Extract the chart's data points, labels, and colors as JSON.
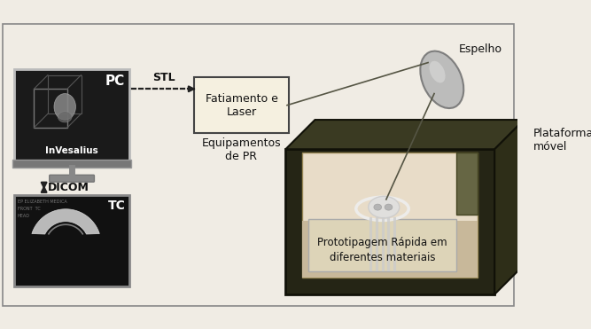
{
  "fig_width": 6.67,
  "fig_height": 3.71,
  "dpi": 100,
  "bg_color": "#f0ece4",
  "labels": {
    "PC": "PC",
    "InVesalius": "InVesalius",
    "STL": "STL",
    "DICOM": "DICOM",
    "TC": "TC",
    "fatiamento": "Fatiamento e\nLaser",
    "equipamentos": "Equipamentos\nde PR",
    "espelho": "Espelho",
    "plataforma": "Plataforma\nmóvel",
    "prototipagem": "Prototipagem Rápida em\ndiferentes materiais"
  },
  "colors": {
    "border_color": "#888888",
    "monitor_screen_bg": "#1a1a1a",
    "monitor_body": "#555555",
    "box_fill": "#f5f0e0",
    "box_border": "#444444",
    "arrow_color": "#222222",
    "machine_dark": "#2a2a1a",
    "machine_mid": "#c8b89a",
    "machine_light": "#e8dcc8",
    "mirror_color": "#b8b8b8",
    "tc_bg": "#111111",
    "text_color": "#111111",
    "white": "#ffffff",
    "dashed_color": "#333333"
  }
}
